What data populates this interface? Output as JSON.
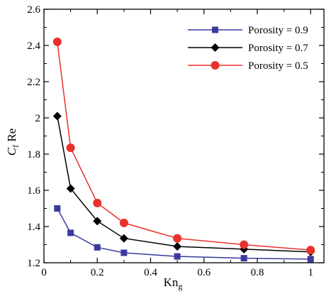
{
  "chart_data": {
    "type": "line",
    "xlabel": {
      "main": "Kn",
      "sub": "g"
    },
    "ylabel": {
      "main": "C",
      "sub": "f",
      "tail": " Re"
    },
    "xlim": [
      0,
      1.05
    ],
    "ylim": [
      1.2,
      2.6
    ],
    "xticks": [
      0,
      0.2,
      0.4,
      0.6,
      0.8,
      1
    ],
    "xtick_labels": [
      "0",
      "0.2",
      "0.4",
      "0.6",
      "0.8",
      "1"
    ],
    "yticks": [
      1.2,
      1.4,
      1.6,
      1.8,
      2.0,
      2.2,
      2.4,
      2.6
    ],
    "ytick_labels": [
      "1.2",
      "1.4",
      "1.6",
      "1.8",
      "2",
      "2.2",
      "2.4",
      "2.6"
    ],
    "grid": false,
    "legend_position": "top-right",
    "series": [
      {
        "name": "Porosity = 0.9",
        "color": "#3a3a9e",
        "marker": "square",
        "x": [
          0.05,
          0.1,
          0.2,
          0.3,
          0.5,
          0.75,
          1
        ],
        "y": [
          1.5,
          1.365,
          1.285,
          1.255,
          1.235,
          1.225,
          1.22
        ]
      },
      {
        "name": "Porosity = 0.7",
        "color": "#000000",
        "marker": "diamond",
        "x": [
          0.05,
          0.1,
          0.2,
          0.3,
          0.5,
          0.75,
          1
        ],
        "y": [
          2.01,
          1.61,
          1.43,
          1.335,
          1.29,
          1.275,
          1.26
        ]
      },
      {
        "name": "Porosity = 0.5",
        "color": "#e8322b",
        "marker": "circle",
        "x": [
          0.05,
          0.1,
          0.2,
          0.3,
          0.5,
          0.75,
          1
        ],
        "y": [
          2.42,
          1.835,
          1.53,
          1.42,
          1.335,
          1.3,
          1.27
        ]
      }
    ]
  }
}
